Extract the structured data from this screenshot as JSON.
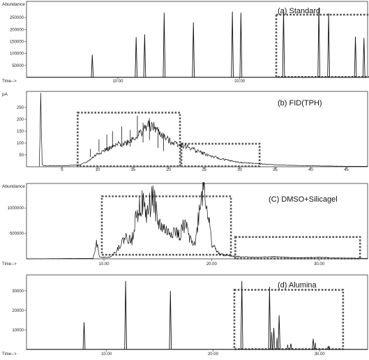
{
  "chart_data": [
    {
      "type": "line",
      "title": "(a) Standard",
      "ylabel": "Abundance",
      "xlabel": "Time-->",
      "x_ticks": [
        "10.00",
        "20.00"
      ],
      "y_ticks": [
        "250000",
        "200000",
        "150000",
        "100000",
        "50000"
      ],
      "xlim": [
        2.5,
        30.5
      ],
      "ylim": [
        0,
        300000
      ],
      "peak_labels": [
        "",
        "",
        "",
        "",
        "",
        "",
        "",
        "",
        "",
        "",
        "",
        "",
        "",
        ""
      ],
      "series": [
        {
          "name": "",
          "x": [
            7.9,
            11.5,
            12.2,
            13.8,
            16.2,
            19.4,
            20.1,
            23.6,
            26.5,
            27.3,
            29.5,
            30.2
          ],
          "values": [
            95000,
            168000,
            180000,
            270000,
            230000,
            275000,
            270000,
            282000,
            290000,
            268000,
            170000,
            165000
          ]
        }
      ],
      "boxes": [
        {
          "x0": 23.0,
          "x1": 32.4,
          "y0": 2000,
          "y1": 262000
        }
      ]
    },
    {
      "type": "line",
      "title": "(b) FID(TPH)",
      "ylabel": "pA",
      "xlabel": "",
      "x_ticks": [
        "5",
        "10",
        "15",
        "20",
        "25",
        "30",
        "35",
        "40",
        "45"
      ],
      "y_ticks": [
        "250",
        "200",
        "150",
        "100",
        "50"
      ],
      "xlim": [
        0,
        48
      ],
      "ylim": [
        0,
        300
      ],
      "series": [
        {
          "name": "",
          "x": [
            1.8,
            2.0,
            2.2,
            2.5,
            5.0,
            7.5,
            8.5,
            10.0,
            11.0,
            12.0,
            13.0,
            14.0,
            15.0,
            15.5,
            16.0,
            16.6,
            17.0,
            18.0,
            19.0,
            20.0,
            21.5,
            23.0,
            25.0,
            27.0,
            30.0,
            35.0,
            40.0,
            45.0,
            48.0
          ],
          "values": [
            2,
            300,
            10,
            4,
            4,
            8,
            20,
            55,
            70,
            80,
            95,
            100,
            120,
            130,
            140,
            160,
            175,
            165,
            135,
            110,
            95,
            80,
            55,
            35,
            18,
            8,
            4,
            2,
            2
          ]
        }
      ],
      "spikes": [
        {
          "x": 9.0,
          "y": 75
        },
        {
          "x": 10.2,
          "y": 115
        },
        {
          "x": 11.3,
          "y": 135
        },
        {
          "x": 12.1,
          "y": 150
        },
        {
          "x": 13.4,
          "y": 170
        },
        {
          "x": 14.6,
          "y": 155
        },
        {
          "x": 15.6,
          "y": 215
        },
        {
          "x": 16.4,
          "y": 185
        },
        {
          "x": 17.3,
          "y": 205
        },
        {
          "x": 18.5,
          "y": 145
        },
        {
          "x": 19.3,
          "y": 120
        }
      ],
      "boxes": [
        {
          "x0": 7.2,
          "x1": 21.6,
          "y0": 2,
          "y1": 228
        },
        {
          "x0": 21.8,
          "x1": 32.8,
          "y0": 2,
          "y1": 97
        }
      ]
    },
    {
      "type": "line",
      "title": "(C) DMSO+Silicagel",
      "ylabel": "Abundance",
      "xlabel": "Time-->",
      "x_ticks": [
        "10.00",
        "20.00",
        "30.00"
      ],
      "y_ticks": [
        "1000000",
        "500000"
      ],
      "xlim": [
        2.8,
        34.5
      ],
      "ylim": [
        0,
        1400000
      ],
      "peak_labels": [
        "",
        "",
        "",
        "",
        "",
        "",
        "",
        "",
        "",
        ""
      ],
      "series": [
        {
          "name": "",
          "x": [
            2.8,
            9.0,
            9.3,
            9.6,
            10.5,
            11.0,
            12.0,
            12.6,
            13.0,
            13.5,
            14.0,
            14.6,
            15.0,
            15.5,
            16.0,
            16.5,
            17.0,
            17.5,
            18.0,
            18.5,
            19.0,
            19.3,
            19.6,
            20.0,
            20.5,
            21.0,
            22.0,
            23.0,
            24.0,
            26.0,
            28.0,
            30.0,
            32.0,
            34.5
          ],
          "values": [
            0,
            10000,
            360000,
            30000,
            30000,
            120000,
            420000,
            350000,
            950000,
            1100000,
            850000,
            1280000,
            700000,
            600000,
            500000,
            550000,
            450000,
            700000,
            400000,
            300000,
            1200000,
            1450000,
            1000000,
            300000,
            150000,
            80000,
            50000,
            40000,
            30000,
            40000,
            20000,
            30000,
            15000,
            10000
          ]
        }
      ],
      "boxes": [
        {
          "x0": 9.8,
          "x1": 21.8,
          "y0": 80000,
          "y1": 1230000
        },
        {
          "x0": 22.2,
          "x1": 33.8,
          "y0": 5000,
          "y1": 430000
        }
      ]
    },
    {
      "type": "line",
      "title": "(d) Alumina",
      "ylabel": "",
      "xlabel": "Time-->",
      "x_ticks": [
        "10.00",
        "20.00",
        "30.00"
      ],
      "y_ticks": [
        "30000",
        "20000",
        "10000"
      ],
      "xlim": [
        2.5,
        34.5
      ],
      "ylim": [
        0,
        36000
      ],
      "series": [
        {
          "name": "",
          "x": [
            7.9,
            11.8,
            16.0,
            22.7,
            25.3,
            25.7,
            26.2,
            27.3,
            29.4,
            30.8
          ],
          "values": [
            14000,
            35000,
            30000,
            35000,
            32000,
            11000,
            17500,
            3000,
            5500,
            1500
          ]
        }
      ],
      "boxes": [
        {
          "x0": 22.0,
          "x1": 32.2,
          "y0": 200,
          "y1": 30500
        }
      ]
    }
  ]
}
